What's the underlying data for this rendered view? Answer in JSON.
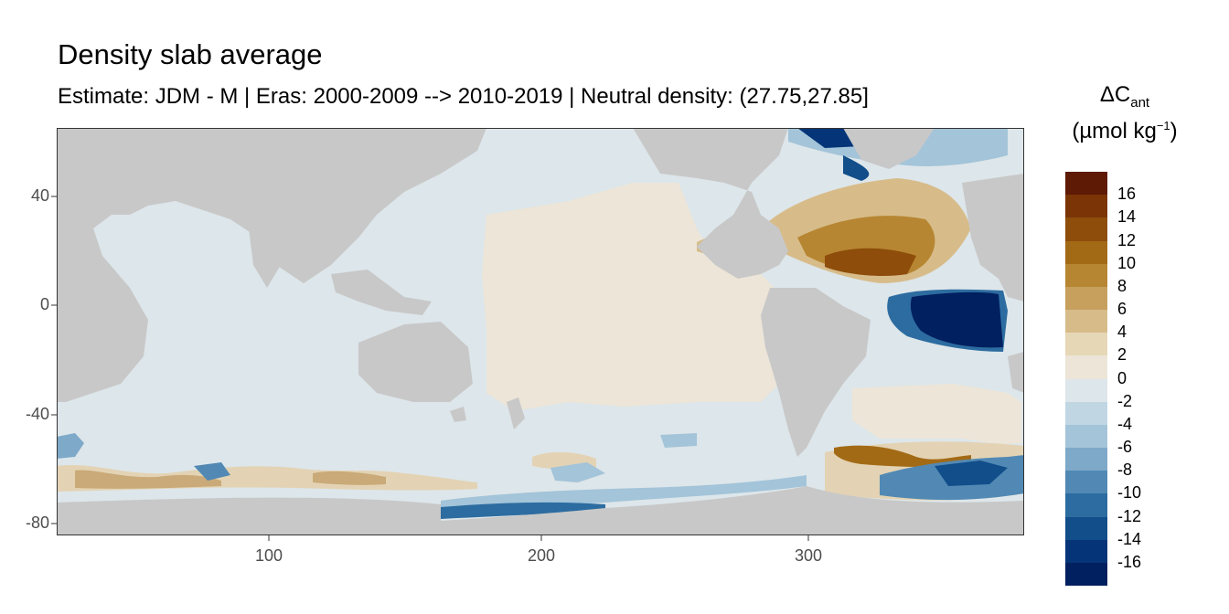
{
  "title": "Density slab average",
  "subtitle": "Estimate: JDM - M | Eras: 2000-2009 --> 2010-2019 | Neutral density: (27.75,27.85]",
  "legend": {
    "title_main": "ΔC",
    "title_sub": "ant",
    "units_prefix": "(µmol kg",
    "units_sup": "−1",
    "units_suffix": ")",
    "labels": [
      "16",
      "14",
      "12",
      "10",
      "8",
      "6",
      "4",
      "2",
      "0",
      "-2",
      "-4",
      "-6",
      "-8",
      "-10",
      "-12",
      "-14",
      "-16"
    ],
    "colors": [
      "#5e1a05",
      "#7a3406",
      "#8e4d0b",
      "#a36a16",
      "#b78632",
      "#c6a05c",
      "#d7bc8a",
      "#e6d7b6",
      "#ece5d8",
      "#dde6ea",
      "#c1d6e3",
      "#a3c4d9",
      "#7ea9c9",
      "#5289b4",
      "#2d6ca0",
      "#114e8a",
      "#053578",
      "#01205f"
    ]
  },
  "axes": {
    "y_ticks": [
      "40",
      "0",
      "-40",
      "-80"
    ],
    "x_ticks": [
      "100",
      "200",
      "300"
    ],
    "x_range": [
      20,
      382
    ],
    "y_range": [
      -85,
      65
    ]
  },
  "colors": {
    "land": "#c8c8c8",
    "ocean_neutral": "#dde6ea",
    "ocean_warm": "#ece5d8",
    "positive_max": "#5e1a05",
    "negative_max": "#01205f"
  }
}
